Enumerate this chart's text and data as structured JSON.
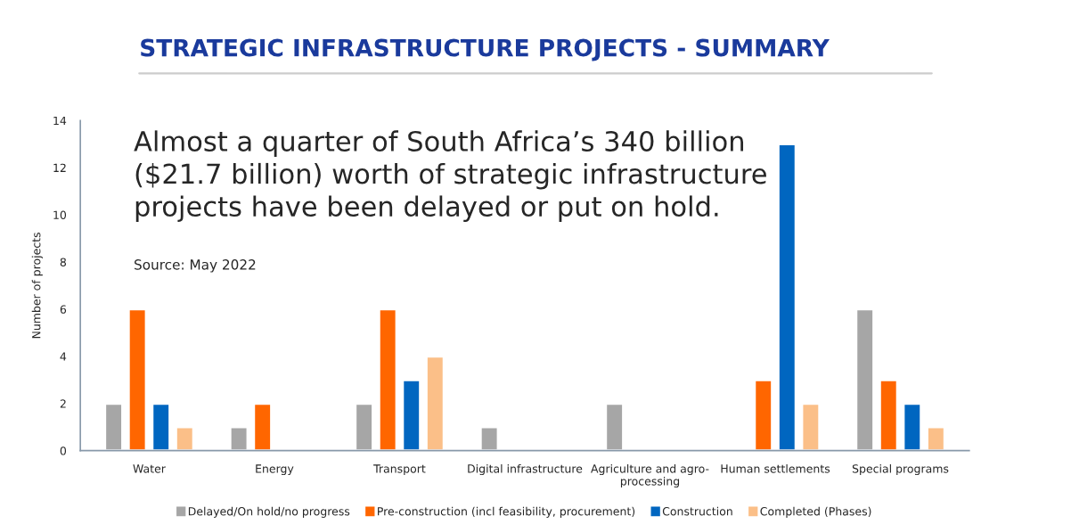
{
  "chart_data": {
    "type": "bar",
    "title": "STRATEGIC INFRASTRUCTURE PROJECTS - SUMMARY",
    "ylabel": "Number of projects",
    "categories": [
      "Water",
      "Energy",
      "Transport",
      "Digital infrastructure",
      "Agriculture and agro-\nprocessing",
      "Human settlements",
      "Special programs"
    ],
    "series": [
      {
        "name": "Delayed/On hold/no progress",
        "color": "#a6a6a6",
        "values": [
          2,
          1,
          2,
          1,
          2,
          null,
          6
        ]
      },
      {
        "name": "Pre-construction (incl feasibility, procurement)",
        "color": "#ff6600",
        "values": [
          6,
          2,
          6,
          null,
          null,
          3,
          3
        ]
      },
      {
        "name": "Construction",
        "color": "#0066c0",
        "values": [
          2,
          null,
          3,
          null,
          null,
          13,
          2
        ]
      },
      {
        "name": "Completed (Phases)",
        "color": "#fbbf88",
        "values": [
          1,
          null,
          4,
          null,
          null,
          2,
          1
        ]
      }
    ],
    "ylim": [
      0,
      14
    ],
    "yticks": [
      0,
      2,
      4,
      6,
      8,
      10,
      12,
      14
    ],
    "grid": false,
    "legend": "bottom",
    "annotations": [
      "Almost a quarter of South Africa’s 340 billion\n($21.7 billion) worth of strategic infrastructure\nprojects have been delayed or put on hold.",
      "Source: May 2022"
    ]
  }
}
